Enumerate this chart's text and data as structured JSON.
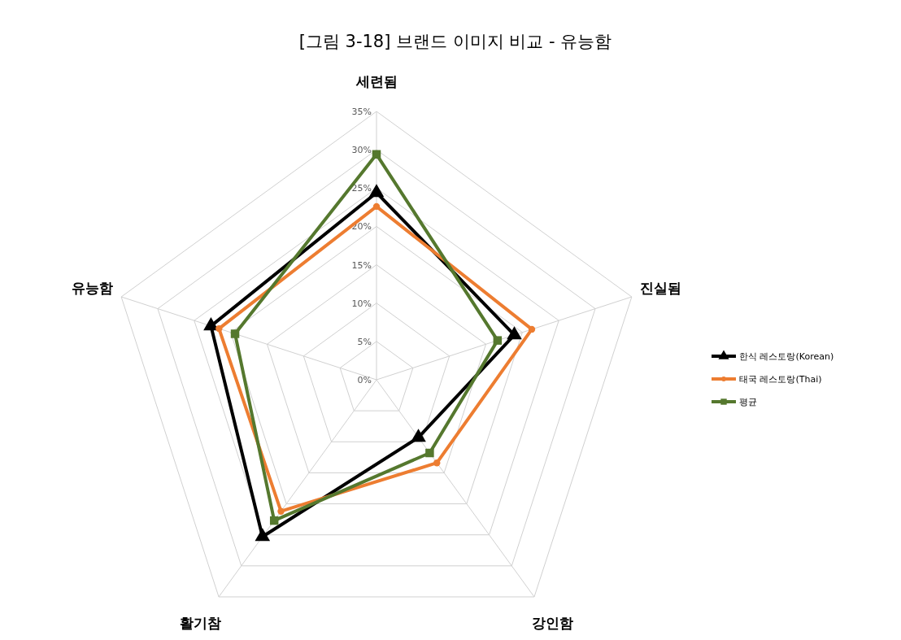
{
  "chart_data": {
    "type": "radar",
    "title": "[그림 3-18] 브랜드 이미지 비교 - 유능함",
    "categories": [
      "세련됨",
      "진실됨",
      "강인함",
      "활기참",
      "유능함"
    ],
    "ylim": [
      0,
      35
    ],
    "yticks": [
      {
        "value": 0,
        "label": "0%"
      },
      {
        "value": 5,
        "label": "5%"
      },
      {
        "value": 10,
        "label": "10%"
      },
      {
        "value": 15,
        "label": "15%"
      },
      {
        "value": 20,
        "label": "20%"
      },
      {
        "value": 25,
        "label": "25%"
      },
      {
        "value": 30,
        "label": "30%"
      },
      {
        "value": 35,
        "label": "35%"
      }
    ],
    "grid": true,
    "legend": "right",
    "series": [
      {
        "name": "한식 레스토랑(Korean)",
        "color": "#000000",
        "marker": "triangle",
        "values": [
          24.4,
          18.9,
          9.3,
          25.3,
          22.7
        ]
      },
      {
        "name": "태국 레스토랑(Thai)",
        "color": "#ed7d31",
        "marker": "circle",
        "values": [
          22.6,
          21.3,
          13.4,
          21.2,
          21.6
        ]
      },
      {
        "name": "평균",
        "color": "#55782e",
        "marker": "square",
        "values": [
          29.4,
          16.6,
          11.8,
          22.7,
          19.4
        ]
      }
    ]
  }
}
